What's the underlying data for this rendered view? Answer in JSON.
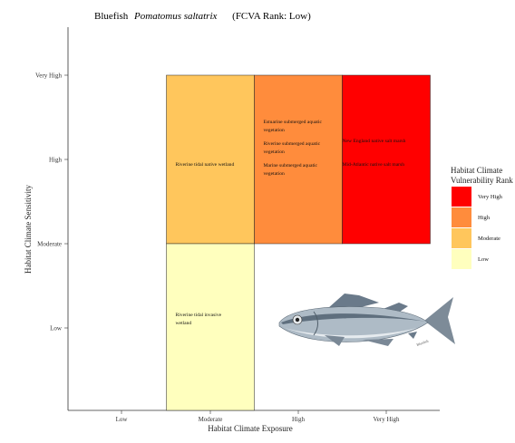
{
  "chart_data": {
    "type": "heatmap",
    "title": {
      "common_name": "Bluefish",
      "scientific_name": "Pomatomus saltatrix",
      "rank": "(FCVA Rank:   Low)"
    },
    "xlabel": "Habitat Climate Exposure",
    "ylabel": "Habitat Climate Sensitivity",
    "x_categories": [
      "Low",
      "Moderate",
      "High",
      "Very High"
    ],
    "y_categories": [
      "Low",
      "Moderate",
      "High",
      "Very High"
    ],
    "cells": [
      {
        "x": "Moderate",
        "y_range": [
          "Moderate",
          "Very High"
        ],
        "rank": "Moderate",
        "labels": [
          "Riverine tidal native wetland"
        ]
      },
      {
        "x": "High",
        "y_range": [
          "Moderate",
          "Very High"
        ],
        "rank": "High",
        "labels": [
          "Estuarine submerged aquatic vegetation",
          "Riverine submerged aquatic vegetation",
          "Marine submerged aquatic vegetation"
        ]
      },
      {
        "x": "Very High",
        "y_range": [
          "Moderate",
          "Very High"
        ],
        "rank": "Very High",
        "labels": [
          "New England native salt marsh",
          "Mid-Atlantic native salt marsh"
        ]
      },
      {
        "x": "Moderate",
        "y_range": [
          "Low",
          "Moderate"
        ],
        "rank": "Low",
        "labels": [
          "Riverine tidal invasive wetland"
        ]
      }
    ],
    "legend": {
      "title": [
        "Habitat Climate",
        "Vulnerability Rank"
      ],
      "placement": "right",
      "items": [
        {
          "label": "Very High",
          "color": "#ff0000"
        },
        {
          "label": "High",
          "color": "#ff8c3c"
        },
        {
          "label": "Moderate",
          "color": "#ffc65c"
        },
        {
          "label": "Low",
          "color": "#ffffbe"
        }
      ]
    },
    "grid": false
  },
  "image_caption": "Bluefish"
}
